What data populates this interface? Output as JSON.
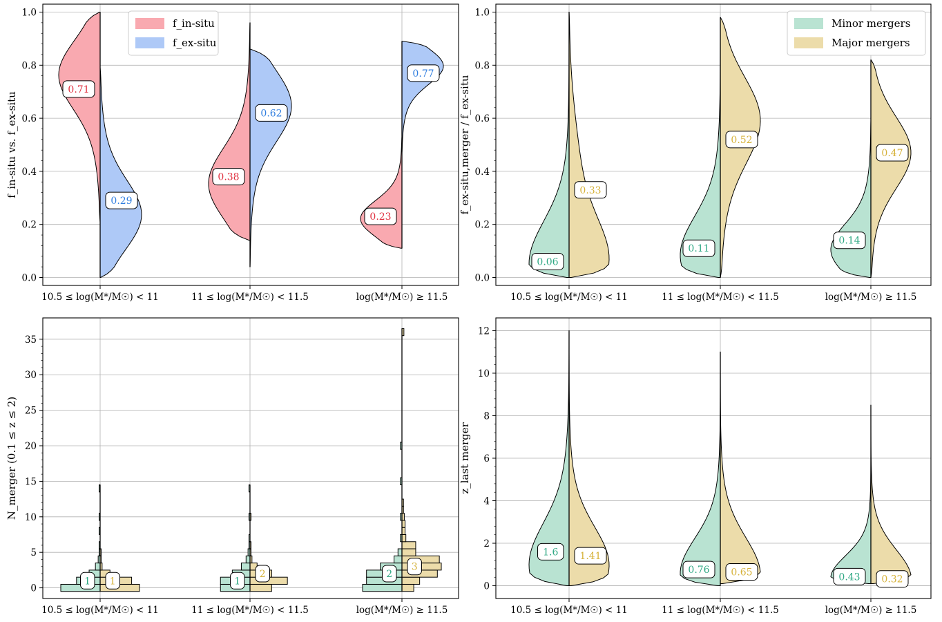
{
  "colors": {
    "in_situ": "#f9a9b0",
    "ex_situ": "#aec9f7",
    "in_situ_text": "#e0303f",
    "ex_situ_text": "#2f7ee0",
    "minor": "#b9e3d2",
    "major": "#ecdcaa",
    "minor_text": "#2fa884",
    "major_text": "#d6b23a",
    "grid": "#b0b0b0"
  },
  "chart_data": [
    {
      "id": "A",
      "type": "violin",
      "ylabel": "f_in-situ vs. f_ex-situ",
      "categories": [
        "10.5 ≤ log(M*/M☉) < 11",
        "11 ≤ log(M*/M☉) < 11.5",
        "log(M*/M☉) ≥ 11.5"
      ],
      "ylim": [
        -0.03,
        1.03
      ],
      "yticks": [
        0.0,
        0.2,
        0.4,
        0.6,
        0.8,
        1.0
      ],
      "ytick_labels": [
        "0.0",
        "0.2",
        "0.4",
        "0.6",
        "0.8",
        "1.0"
      ],
      "grid": true,
      "legend": {
        "placement": "top-center",
        "entries": [
          "f_in-situ",
          "f_ex-situ"
        ]
      },
      "series": [
        {
          "name": "f_in-situ",
          "side": "left",
          "color_key": "in_situ",
          "text_key": "in_situ_text",
          "medians": [
            0.71,
            0.38,
            0.23
          ],
          "median_labels": [
            "0.71",
            "0.38",
            "0.23"
          ],
          "ranges": [
            [
              0.21,
              1.0
            ],
            [
              0.14,
              0.96
            ],
            [
              0.11,
              0.53
            ]
          ],
          "peaks": [
            0.77,
            0.35,
            0.22
          ]
        },
        {
          "name": "f_ex-situ",
          "side": "right",
          "color_key": "ex_situ",
          "text_key": "ex_situ_text",
          "medians": [
            0.29,
            0.62,
            0.77
          ],
          "median_labels": [
            "0.29",
            "0.62",
            "0.77"
          ],
          "ranges": [
            [
              0.0,
              0.79
            ],
            [
              0.04,
              0.86
            ],
            [
              0.47,
              0.89
            ]
          ],
          "peaks": [
            0.23,
            0.65,
            0.8
          ]
        }
      ]
    },
    {
      "id": "B",
      "type": "violin",
      "ylabel": "f_ex-situ,merger / f_ex-situ",
      "categories": [
        "10.5 ≤ log(M*/M☉) < 11",
        "11 ≤ log(M*/M☉) < 11.5",
        "log(M*/M☉) ≥ 11.5"
      ],
      "ylim": [
        -0.03,
        1.03
      ],
      "yticks": [
        0.0,
        0.2,
        0.4,
        0.6,
        0.8,
        1.0
      ],
      "ytick_labels": [
        "0.0",
        "0.2",
        "0.4",
        "0.6",
        "0.8",
        "1.0"
      ],
      "grid": true,
      "legend": {
        "placement": "top-right",
        "entries": [
          "Minor mergers",
          "Major mergers"
        ]
      },
      "series": [
        {
          "name": "Minor mergers",
          "side": "left",
          "color_key": "minor",
          "text_key": "minor_text",
          "medians": [
            0.06,
            0.11,
            0.14
          ],
          "median_labels": [
            "0.06",
            "0.11",
            "0.14"
          ],
          "ranges": [
            [
              0.0,
              0.98
            ],
            [
              0.0,
              0.9
            ],
            [
              0.0,
              0.59
            ]
          ],
          "peaks": [
            0.05,
            0.08,
            0.1
          ]
        },
        {
          "name": "Major mergers",
          "side": "right",
          "color_key": "major",
          "text_key": "major_text",
          "medians": [
            0.33,
            0.52,
            0.47
          ],
          "median_labels": [
            "0.33",
            "0.52",
            "0.47"
          ],
          "ranges": [
            [
              0.0,
              1.0
            ],
            [
              0.0,
              0.98
            ],
            [
              0.0,
              0.82
            ]
          ],
          "peaks": [
            0.05,
            0.6,
            0.47
          ]
        }
      ]
    },
    {
      "id": "C",
      "type": "histogram-violin",
      "ylabel": "N_merger (0.1 ≤ z ≤ 2)",
      "categories": [
        "10.5 ≤ log(M*/M☉) < 11",
        "11 ≤ log(M*/M☉) < 11.5",
        "log(M*/M☉) ≥ 11.5"
      ],
      "ylim": [
        -1.5,
        38
      ],
      "yticks": [
        0,
        5,
        10,
        15,
        20,
        25,
        30,
        35
      ],
      "ytick_labels": [
        "0",
        "5",
        "10",
        "15",
        "20",
        "25",
        "30",
        "35"
      ],
      "grid": true,
      "series": [
        {
          "name": "Minor mergers",
          "side": "left",
          "color_key": "minor",
          "text_key": "minor_text",
          "medians": [
            1,
            1,
            2
          ],
          "median_labels": [
            "1",
            "1",
            "2"
          ],
          "bins": [
            [
              [
                0,
                1.0
              ],
              [
                1,
                0.6
              ],
              [
                2,
                0.28
              ],
              [
                3,
                0.12
              ],
              [
                4,
                0.05
              ],
              [
                5,
                0.02
              ],
              [
                6,
                0.01
              ],
              [
                8,
                0.005
              ],
              [
                10,
                0.003
              ],
              [
                14,
                0.002
              ]
            ],
            [
              [
                0,
                0.75
              ],
              [
                1,
                0.75
              ],
              [
                2,
                0.45
              ],
              [
                3,
                0.22
              ],
              [
                4,
                0.1
              ],
              [
                5,
                0.05
              ],
              [
                6,
                0.02
              ],
              [
                7,
                0.01
              ],
              [
                10,
                0.004
              ],
              [
                14,
                0.002
              ]
            ],
            [
              [
                0,
                1.0
              ],
              [
                1,
                0.9
              ],
              [
                2,
                0.9
              ],
              [
                3,
                0.55
              ],
              [
                4,
                0.2
              ],
              [
                5,
                0.1
              ],
              [
                7,
                0.04
              ],
              [
                10,
                0.04
              ],
              [
                15,
                0.04
              ],
              [
                20,
                0.04
              ]
            ]
          ]
        },
        {
          "name": "Major mergers",
          "side": "right",
          "color_key": "major",
          "text_key": "major_text",
          "medians": [
            1,
            2,
            3
          ],
          "median_labels": [
            "1",
            "2",
            "3"
          ],
          "bins": [
            [
              [
                0,
                1.0
              ],
              [
                1,
                0.8
              ],
              [
                2,
                0.25
              ],
              [
                3,
                0.05
              ],
              [
                4,
                0.01
              ],
              [
                5,
                0.005
              ]
            ],
            [
              [
                0,
                0.55
              ],
              [
                1,
                0.95
              ],
              [
                2,
                0.55
              ],
              [
                3,
                0.18
              ],
              [
                4,
                0.05
              ],
              [
                5,
                0.02
              ],
              [
                6,
                0.01
              ],
              [
                10,
                0.004
              ]
            ],
            [
              [
                0,
                0.3
              ],
              [
                1,
                0.45
              ],
              [
                2,
                0.9
              ],
              [
                3,
                1.0
              ],
              [
                4,
                0.95
              ],
              [
                5,
                0.35
              ],
              [
                6,
                0.35
              ],
              [
                7,
                0.1
              ],
              [
                8,
                0.08
              ],
              [
                9,
                0.08
              ],
              [
                10,
                0.06
              ],
              [
                11,
                0.04
              ],
              [
                12,
                0.04
              ],
              [
                36,
                0.05
              ]
            ]
          ]
        }
      ]
    },
    {
      "id": "D",
      "type": "violin",
      "ylabel": "z_last merger",
      "categories": [
        "10.5 ≤ log(M*/M☉) < 11",
        "11 ≤ log(M*/M☉) < 11.5",
        "log(M*/M☉) ≥ 11.5"
      ],
      "ylim": [
        -0.6,
        12.6
      ],
      "yticks": [
        0,
        2,
        4,
        6,
        8,
        10,
        12
      ],
      "ytick_labels": [
        "0",
        "2",
        "4",
        "6",
        "8",
        "10",
        "12"
      ],
      "grid": true,
      "series": [
        {
          "name": "Minor mergers",
          "side": "left",
          "color_key": "minor",
          "text_key": "minor_text",
          "medians": [
            1.6,
            0.76,
            0.43
          ],
          "median_labels": [
            "1.6",
            "0.76",
            "0.43"
          ],
          "ranges": [
            [
              0.0,
              12.0
            ],
            [
              0.0,
              10.1
            ],
            [
              0.1,
              6.5
            ]
          ],
          "peaks": [
            0.9,
            0.55,
            0.35
          ]
        },
        {
          "name": "Major mergers",
          "side": "right",
          "color_key": "major",
          "text_key": "major_text",
          "medians": [
            1.41,
            0.65,
            0.32
          ],
          "median_labels": [
            "1.41",
            "0.65",
            "0.32"
          ],
          "ranges": [
            [
              0.0,
              11.0
            ],
            [
              0.1,
              11.0
            ],
            [
              0.1,
              8.5
            ]
          ],
          "peaks": [
            0.9,
            0.45,
            0.3
          ]
        }
      ]
    }
  ]
}
